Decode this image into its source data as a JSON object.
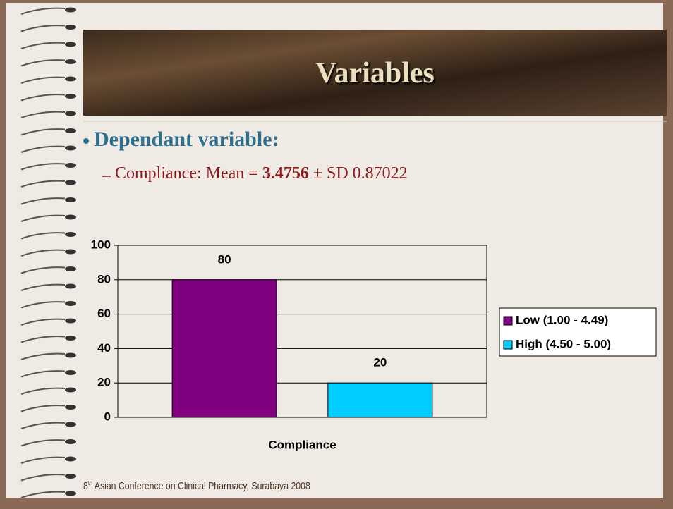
{
  "slide": {
    "title": "Variables",
    "bullet": "Dependant variable:",
    "sub_bullet": {
      "lead": "Compliance: Mean = ",
      "bold": "3.4756",
      "tail": " ± SD 0.87022"
    },
    "footer": {
      "ordinal": "8",
      "superscript": "th",
      "text": " Asian Conference on Clinical Pharmacy, Surabaya 2008"
    }
  },
  "chart_data": {
    "type": "bar",
    "categories": [
      "Compliance"
    ],
    "series": [
      {
        "name": "Low (1.00 - 4.49)",
        "color": "#800080",
        "values": [
          80
        ]
      },
      {
        "name": "High (4.50 - 5.00)",
        "color": "#00ccff",
        "values": [
          20
        ]
      }
    ],
    "ylim": [
      0,
      100
    ],
    "yticks": [
      0,
      20,
      40,
      60,
      80,
      100
    ],
    "grid": true,
    "legend": "right"
  }
}
